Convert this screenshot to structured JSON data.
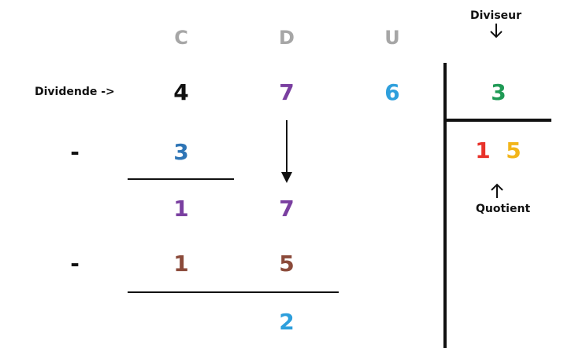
{
  "columns": {
    "hundreds": {
      "label": "C",
      "color": "#a6a6a6"
    },
    "tens": {
      "label": "D",
      "color": "#a6a6a6"
    },
    "units": {
      "label": "U",
      "color": "#a6a6a6"
    }
  },
  "labels": {
    "dividend": "Dividende ->",
    "divisor": "Diviseur",
    "quotient": "Quotient"
  },
  "dividend": [
    {
      "digit": "4",
      "color": "#111111"
    },
    {
      "digit": "7",
      "color": "#7a3fa0"
    },
    {
      "digit": "6",
      "color": "#2e9fdc"
    }
  ],
  "divisor": {
    "digit": "3",
    "color": "#1f9a55"
  },
  "steps": {
    "first_subtract": {
      "sign": "-",
      "digit": "3",
      "color": "#2e75b6"
    },
    "first_remainder": [
      {
        "digit": "1",
        "color": "#7a3fa0"
      },
      {
        "digit": "7",
        "color": "#7a3fa0"
      }
    ],
    "second_subtract": {
      "sign": "-",
      "digits": [
        {
          "digit": "1",
          "color": "#8b4a3a"
        },
        {
          "digit": "5",
          "color": "#8b4a3a"
        }
      ]
    },
    "final_remainder": {
      "digit": "2",
      "color": "#2e9fdc"
    }
  },
  "quotient": [
    {
      "digit": "1",
      "color": "#e8322a"
    },
    {
      "digit": "5",
      "color": "#f2b51a"
    }
  ]
}
